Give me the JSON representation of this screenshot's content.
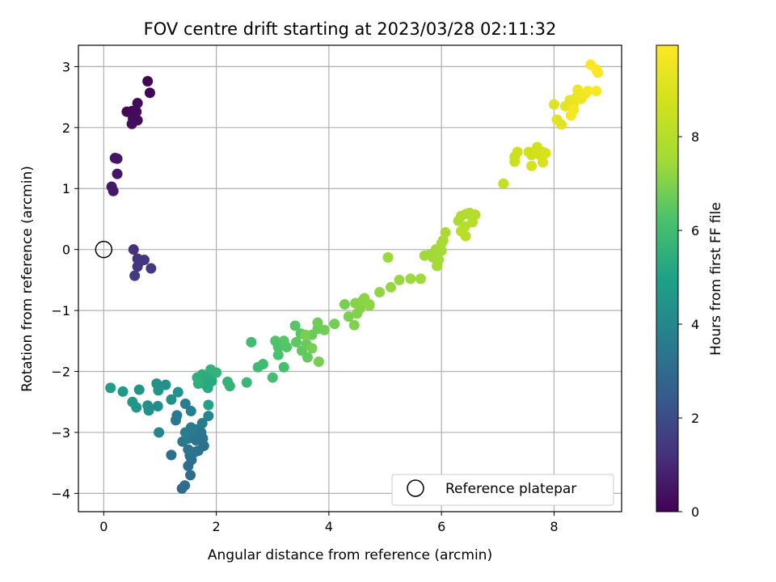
{
  "chart_data": {
    "type": "scatter",
    "title": "FOV centre drift starting at 2023/03/28 02:11:32",
    "xlabel": "Angular distance from reference (arcmin)",
    "ylabel": "Rotation from reference (arcmin)",
    "xlim": [
      -0.45,
      9.2
    ],
    "ylim": [
      -4.3,
      3.35
    ],
    "xticks": [
      0,
      2,
      4,
      6,
      8
    ],
    "yticks": [
      -4,
      -3,
      -2,
      -1,
      0,
      1,
      2,
      3
    ],
    "grid": true,
    "colormap": "viridis",
    "colorbar": {
      "label": "Hours from first FF file",
      "range": [
        0,
        9.95
      ],
      "ticks": [
        0,
        2,
        4,
        6,
        8
      ]
    },
    "legend": {
      "placement": "lower-right",
      "entries": [
        {
          "label": "Reference platepar",
          "marker": "open-circle"
        }
      ]
    },
    "reference_point": {
      "x": 0,
      "y": 0
    },
    "points": [
      [
        0.78,
        2.76,
        0.1
      ],
      [
        0.82,
        2.57,
        0.12
      ],
      [
        0.6,
        2.4,
        0.15
      ],
      [
        0.5,
        2.27,
        0.18
      ],
      [
        0.41,
        2.26,
        0.2
      ],
      [
        0.58,
        2.26,
        0.22
      ],
      [
        0.52,
        2.15,
        0.25
      ],
      [
        0.6,
        2.12,
        0.27
      ],
      [
        0.5,
        2.06,
        0.3
      ],
      [
        0.2,
        1.5,
        0.45
      ],
      [
        0.24,
        1.49,
        0.48
      ],
      [
        0.24,
        1.24,
        0.52
      ],
      [
        0.14,
        1.03,
        0.58
      ],
      [
        0.17,
        0.96,
        0.62
      ],
      [
        0.53,
        0.0,
        1.2
      ],
      [
        0.6,
        -0.15,
        1.25
      ],
      [
        0.72,
        -0.17,
        1.3
      ],
      [
        0.64,
        -0.2,
        1.35
      ],
      [
        0.6,
        -0.28,
        1.4
      ],
      [
        0.84,
        -0.31,
        1.45
      ],
      [
        0.55,
        -0.43,
        1.5
      ],
      [
        1.39,
        -3.92,
        3.0
      ],
      [
        1.44,
        -3.87,
        3.05
      ],
      [
        1.54,
        -3.7,
        3.1
      ],
      [
        1.5,
        -3.55,
        3.15
      ],
      [
        1.56,
        -3.45,
        3.2
      ],
      [
        1.53,
        -3.38,
        3.25
      ],
      [
        1.62,
        -3.32,
        3.3
      ],
      [
        1.68,
        -3.3,
        3.35
      ],
      [
        1.5,
        -3.28,
        3.4
      ],
      [
        1.2,
        -3.37,
        3.2
      ],
      [
        1.4,
        -3.15,
        3.5
      ],
      [
        1.5,
        -3.1,
        3.6
      ],
      [
        1.6,
        -3.05,
        3.5
      ],
      [
        1.45,
        -3.0,
        3.7
      ],
      [
        1.62,
        -2.95,
        3.6
      ],
      [
        1.7,
        -2.95,
        3.6
      ],
      [
        1.55,
        -2.92,
        3.6
      ],
      [
        1.75,
        -2.85,
        3.6
      ],
      [
        1.73,
        -3.0,
        3.4
      ],
      [
        1.64,
        -3.13,
        3.3
      ],
      [
        1.78,
        -3.22,
        3.2
      ],
      [
        1.76,
        -3.1,
        3.3
      ],
      [
        1.28,
        -2.8,
        3.5
      ],
      [
        1.3,
        -2.72,
        3.55
      ],
      [
        1.45,
        -2.53,
        3.6
      ],
      [
        1.55,
        -2.65,
        3.7
      ],
      [
        1.86,
        -2.73,
        3.9
      ],
      [
        0.98,
        -3.0,
        4.0
      ],
      [
        0.96,
        -2.57,
        4.2
      ],
      [
        1.2,
        -2.46,
        4.3
      ],
      [
        0.78,
        -2.56,
        4.3
      ],
      [
        0.8,
        -2.64,
        4.35
      ],
      [
        1.32,
        -2.34,
        4.4
      ],
      [
        1.1,
        -2.22,
        4.4
      ],
      [
        0.94,
        -2.2,
        4.45
      ],
      [
        0.97,
        -2.31,
        4.5
      ],
      [
        0.63,
        -2.3,
        4.5
      ],
      [
        0.51,
        -2.5,
        4.6
      ],
      [
        0.58,
        -2.59,
        4.6
      ],
      [
        0.34,
        -2.33,
        4.7
      ],
      [
        0.12,
        -2.27,
        4.8
      ],
      [
        1.86,
        -2.55,
        5.0
      ],
      [
        1.8,
        -2.21,
        5.2
      ],
      [
        1.85,
        -2.27,
        5.25
      ],
      [
        1.92,
        -2.16,
        5.3
      ],
      [
        1.8,
        -2.15,
        5.3
      ],
      [
        1.88,
        -2.05,
        5.35
      ],
      [
        1.75,
        -2.05,
        5.4
      ],
      [
        1.66,
        -2.1,
        5.45
      ],
      [
        1.68,
        -2.2,
        5.5
      ],
      [
        1.9,
        -1.97,
        5.55
      ],
      [
        2.0,
        -2.02,
        5.6
      ],
      [
        2.2,
        -2.17,
        5.6
      ],
      [
        2.24,
        -2.24,
        5.65
      ],
      [
        2.54,
        -2.18,
        5.8
      ],
      [
        2.74,
        -1.93,
        5.9
      ],
      [
        2.83,
        -1.88,
        6.0
      ],
      [
        2.62,
        -1.52,
        6.0
      ],
      [
        3.0,
        -2.1,
        6.05
      ],
      [
        3.2,
        -1.93,
        6.1
      ],
      [
        3.1,
        -1.73,
        6.2
      ],
      [
        3.1,
        -1.6,
        6.25
      ],
      [
        3.05,
        -1.5,
        6.3
      ],
      [
        3.25,
        -1.6,
        6.35
      ],
      [
        3.2,
        -1.5,
        6.4
      ],
      [
        3.4,
        -1.25,
        6.4
      ],
      [
        3.5,
        -1.38,
        6.45
      ],
      [
        3.42,
        -1.52,
        6.5
      ],
      [
        3.52,
        -1.66,
        6.55
      ],
      [
        3.62,
        -1.77,
        6.6
      ],
      [
        3.6,
        -1.55,
        6.65
      ],
      [
        3.7,
        -1.4,
        6.7
      ],
      [
        3.8,
        -1.3,
        6.7
      ],
      [
        3.8,
        -1.2,
        6.75
      ],
      [
        3.92,
        -1.32,
        6.8
      ],
      [
        4.1,
        -1.22,
        6.8
      ],
      [
        3.82,
        -1.84,
        6.85
      ],
      [
        3.7,
        -1.62,
        6.85
      ],
      [
        3.58,
        -1.4,
        6.9
      ],
      [
        4.28,
        -0.9,
        6.9
      ],
      [
        4.35,
        -1.1,
        6.95
      ],
      [
        4.45,
        -1.24,
        7.0
      ],
      [
        4.5,
        -1.05,
        7.0
      ],
      [
        4.55,
        -0.97,
        7.05
      ],
      [
        4.47,
        -0.88,
        7.1
      ],
      [
        4.6,
        -0.84,
        7.15
      ],
      [
        4.63,
        -0.8,
        7.15
      ],
      [
        4.72,
        -0.92,
        7.2
      ],
      [
        4.72,
        -0.9,
        7.2
      ],
      [
        4.9,
        -0.7,
        7.25
      ],
      [
        5.1,
        -0.62,
        7.3
      ],
      [
        5.25,
        -0.5,
        7.35
      ],
      [
        5.45,
        -0.48,
        7.4
      ],
      [
        5.05,
        -0.13,
        7.4
      ],
      [
        5.63,
        -0.48,
        7.45
      ],
      [
        5.7,
        -0.1,
        7.45
      ],
      [
        5.8,
        -0.08,
        7.5
      ],
      [
        5.85,
        -0.13,
        7.5
      ],
      [
        5.9,
        0.0,
        7.55
      ],
      [
        6.0,
        -0.02,
        7.6
      ],
      [
        5.95,
        -0.17,
        7.6
      ],
      [
        5.92,
        -0.27,
        7.6
      ],
      [
        6.0,
        0.1,
        7.65
      ],
      [
        6.03,
        0.15,
        7.65
      ],
      [
        6.07,
        0.28,
        7.7
      ],
      [
        6.3,
        0.47,
        7.8
      ],
      [
        6.35,
        0.55,
        7.85
      ],
      [
        6.43,
        0.58,
        7.9
      ],
      [
        6.5,
        0.6,
        7.95
      ],
      [
        6.6,
        0.57,
        8.0
      ],
      [
        6.55,
        0.45,
        8.0
      ],
      [
        6.42,
        0.38,
        8.05
      ],
      [
        6.35,
        0.3,
        8.1
      ],
      [
        6.43,
        0.22,
        8.1
      ],
      [
        7.1,
        1.08,
        8.4
      ],
      [
        7.3,
        1.52,
        8.5
      ],
      [
        7.3,
        1.44,
        8.55
      ],
      [
        7.35,
        1.6,
        8.6
      ],
      [
        7.55,
        1.6,
        8.7
      ],
      [
        7.6,
        1.55,
        8.7
      ],
      [
        7.7,
        1.68,
        8.75
      ],
      [
        7.75,
        1.55,
        8.8
      ],
      [
        7.8,
        1.6,
        8.8
      ],
      [
        7.6,
        1.37,
        8.85
      ],
      [
        7.8,
        1.43,
        8.9
      ],
      [
        7.85,
        1.58,
        8.9
      ],
      [
        8.0,
        2.38,
        9.1
      ],
      [
        8.05,
        2.13,
        9.15
      ],
      [
        8.13,
        2.05,
        9.2
      ],
      [
        8.2,
        2.35,
        9.3
      ],
      [
        8.28,
        2.45,
        9.35
      ],
      [
        8.35,
        2.4,
        9.4
      ],
      [
        8.4,
        2.5,
        9.5
      ],
      [
        8.42,
        2.62,
        9.55
      ],
      [
        8.5,
        2.55,
        9.6
      ],
      [
        8.48,
        2.47,
        9.6
      ],
      [
        8.55,
        2.55,
        9.65
      ],
      [
        8.6,
        2.6,
        9.7
      ],
      [
        8.35,
        2.3,
        9.7
      ],
      [
        8.3,
        2.2,
        9.75
      ],
      [
        8.65,
        3.03,
        9.85
      ],
      [
        8.75,
        2.95,
        9.9
      ],
      [
        8.78,
        2.9,
        9.9
      ],
      [
        8.75,
        2.6,
        9.85
      ]
    ]
  }
}
